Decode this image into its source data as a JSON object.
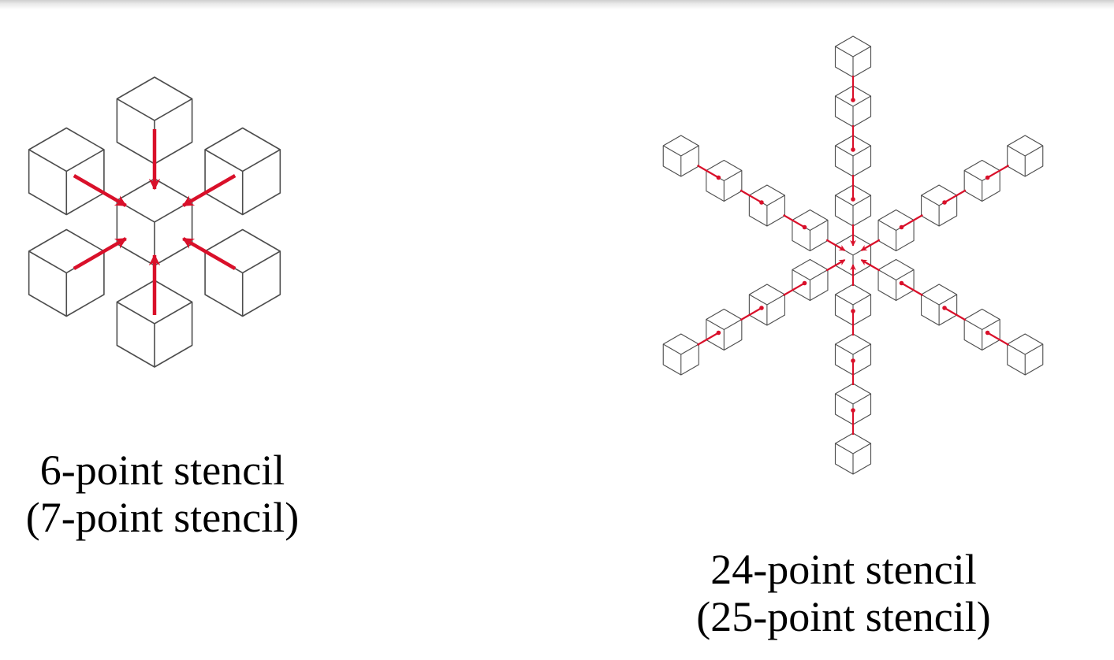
{
  "colors": {
    "cube_stroke": "#4d4d4d",
    "arrow": "#d9102a",
    "text": "#000000"
  },
  "left_diagram": {
    "caption_line1": "6-point stencil",
    "caption_line2": "(7-point stencil)"
  },
  "right_diagram": {
    "caption_line1": "24-point stencil",
    "caption_line2": "(25-point stencil)"
  }
}
